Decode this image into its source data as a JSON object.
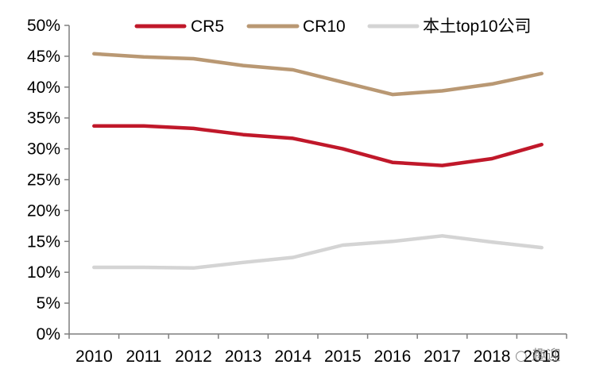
{
  "chart_data": {
    "type": "line",
    "title": "",
    "xlabel": "",
    "ylabel": "",
    "x": [
      "2010",
      "2011",
      "2012",
      "2013",
      "2014",
      "2015",
      "2016",
      "2017",
      "2018",
      "2019"
    ],
    "ylim": [
      0,
      50
    ],
    "y_ticks": [
      "0%",
      "5%",
      "10%",
      "15%",
      "20%",
      "25%",
      "30%",
      "35%",
      "40%",
      "45%",
      "50%"
    ],
    "y_tick_values": [
      0,
      5,
      10,
      15,
      20,
      25,
      30,
      35,
      40,
      45,
      50
    ],
    "unit": "%",
    "grid": false,
    "legend_position": "top",
    "series": [
      {
        "name": "CR5",
        "color": "#c0182a",
        "values": [
          33.7,
          33.7,
          33.3,
          32.3,
          31.7,
          30.0,
          27.8,
          27.3,
          28.4,
          30.7
        ]
      },
      {
        "name": "CR10",
        "color": "#b99873",
        "values": [
          45.4,
          44.9,
          44.6,
          43.5,
          42.8,
          40.8,
          38.8,
          39.4,
          40.5,
          42.2
        ]
      },
      {
        "name": "本土top10公司",
        "color": "#d4d4d4",
        "values": [
          10.8,
          10.8,
          10.7,
          11.6,
          12.4,
          14.4,
          15.0,
          15.9,
          14.9,
          14.0
        ]
      }
    ]
  },
  "watermark": {
    "icon": "wechat-icon",
    "text": "趣迎"
  }
}
